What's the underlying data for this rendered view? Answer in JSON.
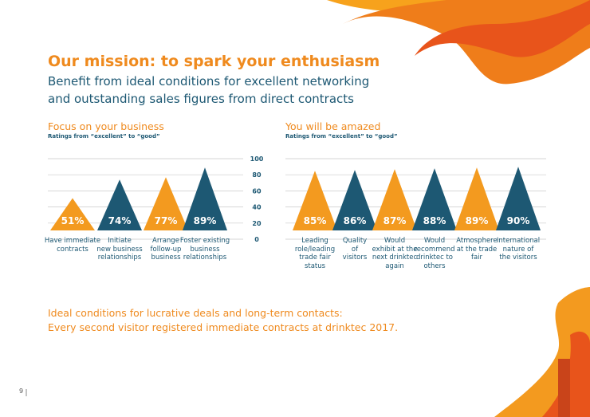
{
  "title": "Our mission: to spark your enthusiasm",
  "subtitle": "Benefit from ideal conditions for excellent networking\nand outstanding sales figures from direct contracts",
  "chart_data": [
    {
      "type": "triangle",
      "title": "Focus on your business",
      "subtitle": "Ratings from “excellent” to “good”",
      "categories": [
        "Have immediate\ncontracts",
        "Initiate\nnew business\nrelationships",
        "Arrange\nfollow-up\nbusiness",
        "Foster existing\nbusiness\nrelationships"
      ],
      "values": [
        51,
        74,
        77,
        89
      ],
      "value_labels": [
        "51%",
        "74%",
        "77%",
        "89%"
      ],
      "colors": [
        "#f39a1f",
        "#1d5873",
        "#f39a1f",
        "#1d5873"
      ],
      "ylim": [
        0,
        100
      ],
      "yticks": [
        0,
        20,
        40,
        60,
        80,
        100
      ],
      "grid": true
    },
    {
      "type": "triangle",
      "title": "You will be amazed",
      "subtitle": "Ratings from “excellent” to “good”",
      "categories": [
        "Leading\nrole/leading\ntrade fair\nstatus",
        "Quality\nof\nvisitors",
        "Would\nexhibit at the\nnext drinktec\nagain",
        "Would\nrecommend\ndrinktec to\nothers",
        "Atmosphere\nat the trade\nfair",
        "International\nnature of\nthe visitors"
      ],
      "values": [
        85,
        86,
        87,
        88,
        89,
        90
      ],
      "value_labels": [
        "85%",
        "86%",
        "87%",
        "88%",
        "89%",
        "90%"
      ],
      "colors": [
        "#f39a1f",
        "#1d5873",
        "#f39a1f",
        "#1d5873",
        "#f39a1f",
        "#1d5873"
      ],
      "ylim": [
        0,
        100
      ],
      "yticks": [
        0,
        20,
        40,
        60,
        80,
        100
      ],
      "grid": true
    }
  ],
  "footer": "Ideal conditions for lucrative deals and long-term contacts:\nEvery second visitor registered immediate contracts at drinktec 2017.",
  "page_number": "9"
}
